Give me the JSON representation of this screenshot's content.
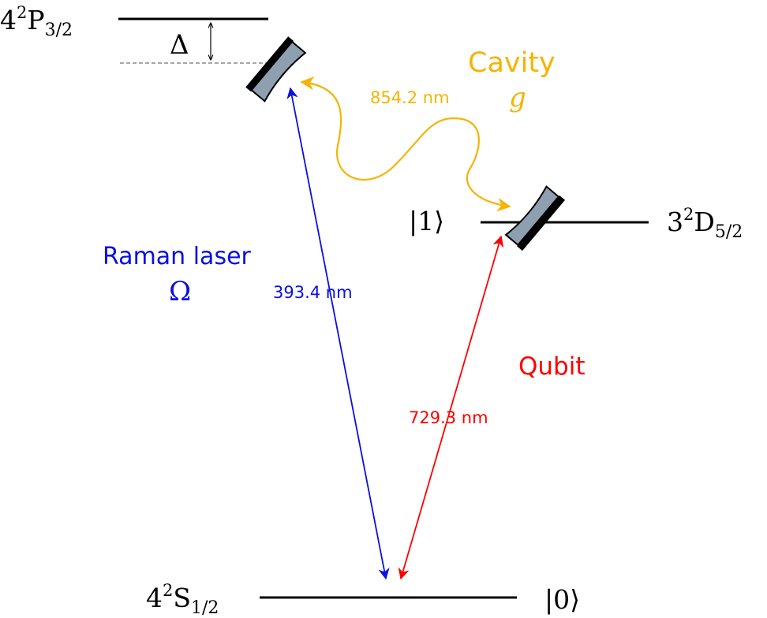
{
  "levels": {
    "p32": {
      "base": "4",
      "sup": "2",
      "letter": "P",
      "sub": "3/2"
    },
    "d52": {
      "base": "3",
      "sup": "2",
      "letter": "D",
      "sub": "5/2"
    },
    "s12": {
      "base": "4",
      "sup": "2",
      "letter": "S",
      "sub": "1/2"
    }
  },
  "detuning_symbol": "Δ",
  "kets": {
    "one": "|1⟩",
    "zero": "|0⟩"
  },
  "cavity": {
    "label": "Cavity",
    "symbol": "g",
    "wavelength": "854.2 nm"
  },
  "raman": {
    "label": "Raman laser",
    "symbol": "Ω",
    "wavelength": "393.4 nm"
  },
  "qubit": {
    "label": "Qubit",
    "wavelength": "729.3 nm"
  },
  "colors": {
    "cavity": "#f5b400",
    "raman": "#0a10e0",
    "qubit": "#ff0000",
    "mirror_fill": "#8ea0b0",
    "line": "#000000"
  }
}
